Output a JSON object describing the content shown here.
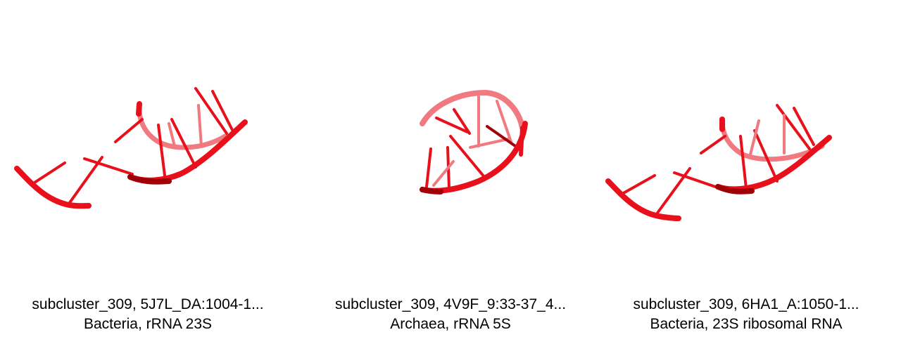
{
  "panels": [
    {
      "title": "subcluster_309, 5J7L_DA:1004-1...",
      "subtitle": "Bacteria, rRNA 23S"
    },
    {
      "title": "subcluster_309, 4V9F_9:33-37_4...",
      "subtitle": "Archaea, rRNA 5S"
    },
    {
      "title": "subcluster_309, 6HA1_A:1050-1...",
      "subtitle": "Bacteria, 23S ribosomal RNA"
    }
  ],
  "colors": {
    "strand": "#e8101a",
    "strand_dark": "#a00008",
    "strand_light": "#f07a80"
  }
}
